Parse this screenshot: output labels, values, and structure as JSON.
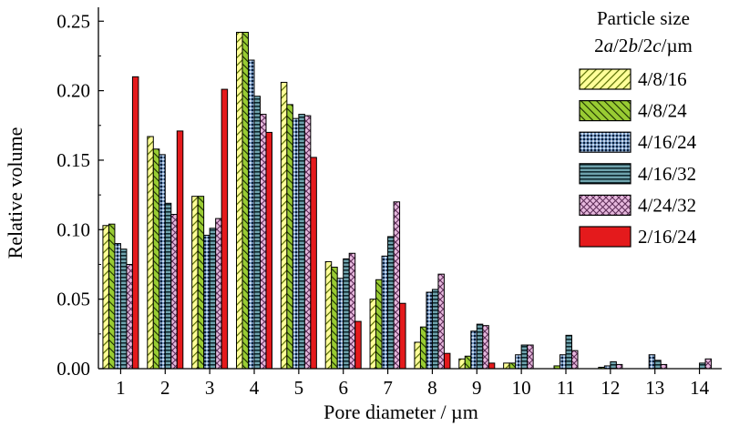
{
  "chart_data": {
    "type": "bar",
    "xlabel": "Pore diameter / µm",
    "ylabel": "Relative volume",
    "categories": [
      "1",
      "2",
      "3",
      "4",
      "5",
      "6",
      "7",
      "8",
      "9",
      "10",
      "11",
      "12",
      "13",
      "14"
    ],
    "ylim": [
      0,
      0.26
    ],
    "yticks": [
      0.0,
      0.05,
      0.1,
      0.15,
      0.2,
      0.25
    ],
    "ytick_labels": [
      "0.00",
      "0.05",
      "0.10",
      "0.15",
      "0.20",
      "0.25"
    ],
    "legend": {
      "title_line1": "Particle size",
      "title_line2_parts": [
        {
          "text": "2",
          "italic": false
        },
        {
          "text": "a",
          "italic": true
        },
        {
          "text": "/2",
          "italic": false
        },
        {
          "text": "b",
          "italic": true
        },
        {
          "text": "/2",
          "italic": false
        },
        {
          "text": "c",
          "italic": true
        },
        {
          "text": "/µm",
          "italic": false
        }
      ],
      "placement": "top-right"
    },
    "series": [
      {
        "name": "4/8/16",
        "pattern": "diag-yellow",
        "color": "#ffff99",
        "values": [
          0.103,
          0.167,
          0.124,
          0.242,
          0.206,
          0.077,
          0.05,
          0.019,
          0.007,
          0.004,
          0.0,
          0.0,
          0.0,
          0.0
        ]
      },
      {
        "name": "4/8/24",
        "pattern": "diag-green",
        "color": "#99cc33",
        "values": [
          0.104,
          0.158,
          0.124,
          0.242,
          0.19,
          0.073,
          0.064,
          0.03,
          0.009,
          0.004,
          0.002,
          0.001,
          0.0,
          0.0
        ]
      },
      {
        "name": "4/16/24",
        "pattern": "dots-blue",
        "color": "#7a9fc2",
        "values": [
          0.09,
          0.154,
          0.096,
          0.222,
          0.18,
          0.065,
          0.081,
          0.055,
          0.027,
          0.01,
          0.01,
          0.002,
          0.01,
          0.0
        ]
      },
      {
        "name": "4/16/32",
        "pattern": "hstripe-teal",
        "color": "#5f8c96",
        "values": [
          0.086,
          0.119,
          0.101,
          0.196,
          0.183,
          0.079,
          0.095,
          0.057,
          0.032,
          0.017,
          0.024,
          0.005,
          0.006,
          0.004
        ]
      },
      {
        "name": "4/24/32",
        "pattern": "cross-pink",
        "color": "#d9a6d0",
        "values": [
          0.075,
          0.111,
          0.108,
          0.183,
          0.182,
          0.083,
          0.12,
          0.068,
          0.031,
          0.017,
          0.013,
          0.003,
          0.003,
          0.007
        ]
      },
      {
        "name": "2/16/24",
        "pattern": "solid-red",
        "color": "#e41a1c",
        "values": [
          0.21,
          0.171,
          0.201,
          0.17,
          0.152,
          0.034,
          0.047,
          0.011,
          0.004,
          0.0,
          0.0,
          0.0,
          0.0,
          0.0
        ]
      }
    ]
  }
}
